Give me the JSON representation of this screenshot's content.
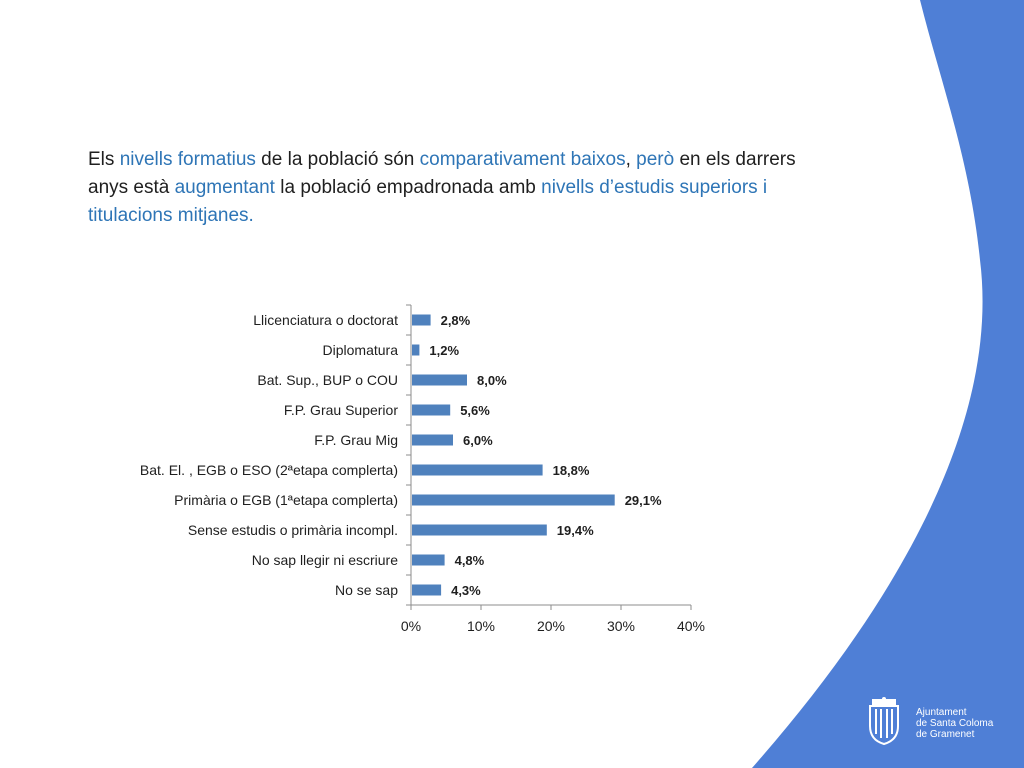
{
  "intro": {
    "s1": "Els ",
    "s2": "nivells formatius",
    "s3": " de la població són ",
    "s4": "comparativament baixos",
    "s5": ", ",
    "s6": "però",
    "s7": " en els darrers anys està ",
    "s8": "augmentant",
    "s9": " la població empadronada amb ",
    "s10": "nivells d’estudis superiors i titulacions mitjanes."
  },
  "chart_data": {
    "type": "bar",
    "orientation": "horizontal",
    "categories": [
      "Llicenciatura o doctorat",
      "Diplomatura",
      "Bat. Sup., BUP o COU",
      "F.P. Grau Superior",
      "F.P. Grau Mig",
      "Bat. El. , EGB o ESO (2ªetapa complerta)",
      "Primària o EGB (1ªetapa complerta)",
      "Sense estudis o primària incompl.",
      "No sap llegir ni escriure",
      "No se sap"
    ],
    "values": [
      2.8,
      1.2,
      8.0,
      5.6,
      6.0,
      18.8,
      29.1,
      19.4,
      4.8,
      4.3
    ],
    "data_labels": [
      "2,8%",
      "1,2%",
      "8,0%",
      "5,6%",
      "6,0%",
      "18,8%",
      "29,1%",
      "19,4%",
      "4,8%",
      "4,3%"
    ],
    "x_ticks": [
      0,
      10,
      20,
      30,
      40
    ],
    "x_tick_labels": [
      "0%",
      "10%",
      "20%",
      "30%",
      "40%"
    ],
    "xlim": [
      0,
      40
    ],
    "grid": false,
    "bar_color": "#4f81bd"
  },
  "colors": {
    "accent_blue": "#4f7fd6",
    "highlight_text": "#2e75b6"
  },
  "logo": {
    "line1": "Ajuntament",
    "line2": "de Santa Coloma",
    "line3": "de Gramenet"
  }
}
